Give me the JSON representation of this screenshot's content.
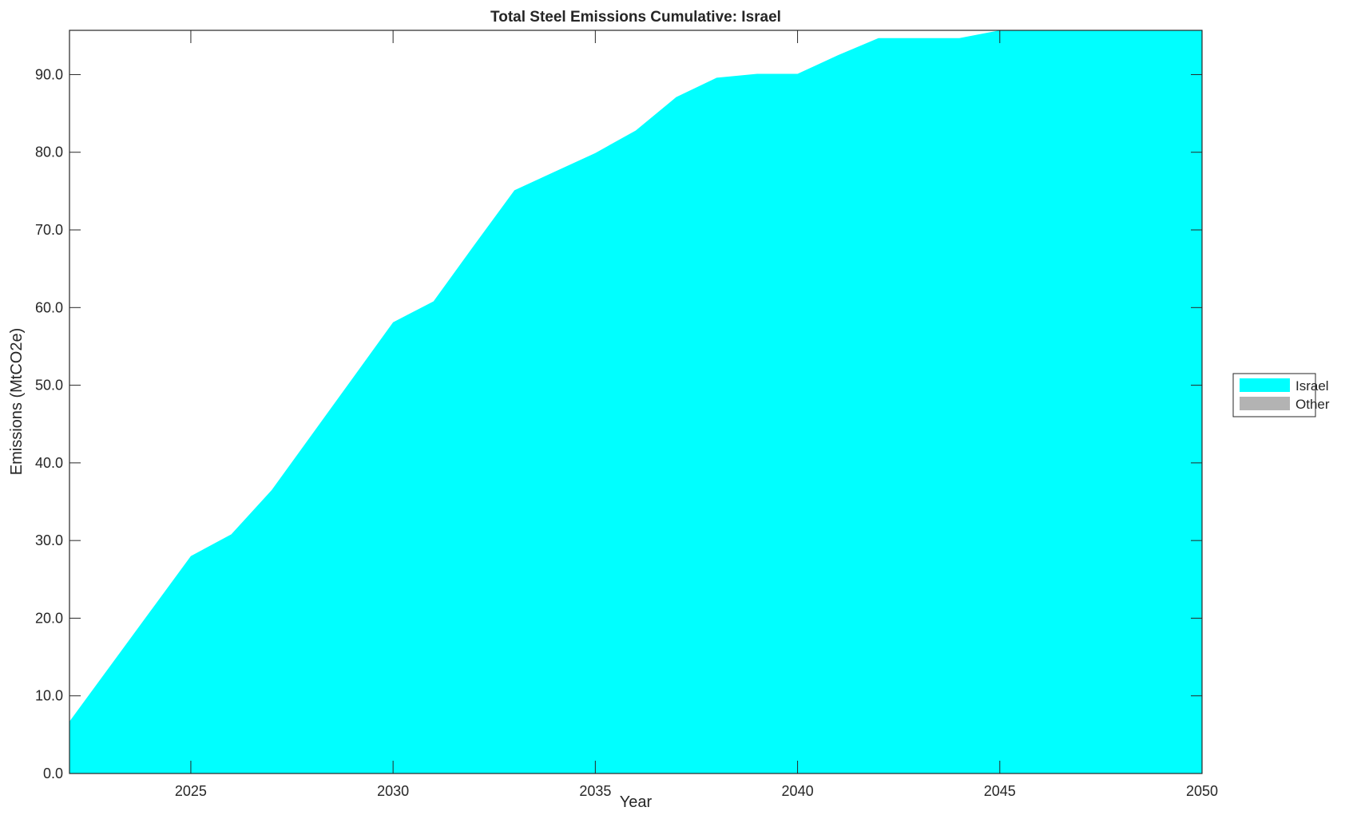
{
  "chart_data": {
    "type": "area",
    "title": "Total Steel Emissions Cumulative: Israel",
    "xlabel": "Year",
    "ylabel": "Emissions (MtCO2e)",
    "xlim": [
      2022,
      2050
    ],
    "ylim": [
      0,
      95.7
    ],
    "grid": false,
    "legend_placement": "right",
    "x_ticks": [
      "2025",
      "2030",
      "2035",
      "2040",
      "2045",
      "2050"
    ],
    "y_ticks": [
      "0.0",
      "10.0",
      "20.0",
      "30.0",
      "40.0",
      "50.0",
      "60.0",
      "70.0",
      "80.0",
      "90.0"
    ],
    "x": [
      2022,
      2023,
      2024,
      2025,
      2026,
      2027,
      2028,
      2029,
      2030,
      2031,
      2032,
      2033,
      2034,
      2035,
      2036,
      2037,
      2038,
      2039,
      2040,
      2041,
      2042,
      2043,
      2044,
      2045,
      2046,
      2047,
      2048,
      2049,
      2050
    ],
    "series": [
      {
        "name": "Israel",
        "color": "#00ffff",
        "values": [
          6.7,
          13.8,
          20.9,
          28.0,
          30.8,
          36.5,
          43.7,
          50.9,
          58.1,
          60.8,
          68.0,
          75.1,
          77.5,
          79.9,
          82.8,
          87.1,
          89.6,
          90.1,
          90.1,
          92.5,
          94.7,
          94.7,
          94.7,
          95.7,
          95.7,
          95.7,
          95.7,
          95.7,
          95.7
        ]
      },
      {
        "name": "Other",
        "color": "#b3b3b3",
        "values": [
          0,
          0,
          0,
          0,
          0,
          0,
          0,
          0,
          0,
          0,
          0,
          0,
          0,
          0,
          0,
          0,
          0,
          0,
          0,
          0,
          0,
          0,
          0,
          0,
          0,
          0,
          0,
          0,
          0
        ]
      }
    ]
  }
}
